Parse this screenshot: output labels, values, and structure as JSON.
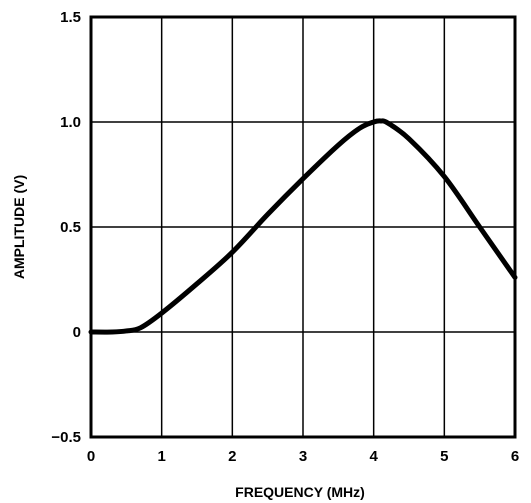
{
  "chart_data": {
    "type": "line",
    "title": "",
    "xlabel": "FREQUENCY (MHz)",
    "ylabel": "AMPLITUDE (V)",
    "xlim": [
      0,
      6
    ],
    "ylim": [
      -0.5,
      1.5
    ],
    "x_ticks": [
      "0",
      "1",
      "2",
      "3",
      "4",
      "5",
      "6"
    ],
    "y_ticks": [
      "1.5",
      "1.0",
      "0.5",
      "0",
      "−0.5"
    ],
    "grid": true,
    "legend": "none",
    "colors": {
      "line": "#000000",
      "grid": "#000000",
      "background": "#ffffff"
    },
    "series": [
      {
        "x": [
          0,
          0.3,
          0.5,
          0.7,
          1.0,
          1.5,
          2.0,
          2.5,
          3.0,
          3.5,
          3.8,
          4.0,
          4.1,
          4.2,
          4.5,
          5.0,
          5.5,
          6.0
        ],
        "y": [
          0,
          0,
          0.005,
          0.02,
          0.09,
          0.23,
          0.38,
          0.56,
          0.73,
          0.89,
          0.97,
          1.0,
          1.005,
          0.995,
          0.92,
          0.74,
          0.5,
          0.26
        ]
      }
    ]
  }
}
